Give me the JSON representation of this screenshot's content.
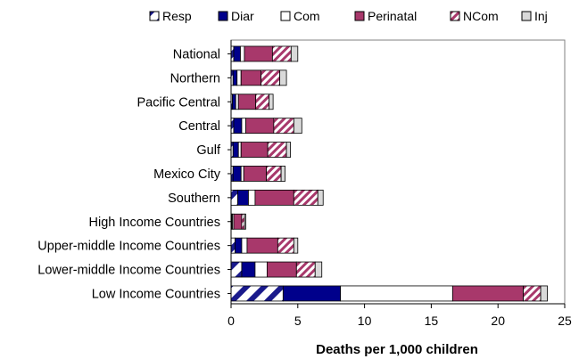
{
  "chart_data": {
    "type": "bar",
    "orientation": "horizontal",
    "stacked": true,
    "title": "",
    "xlabel": "Deaths per 1,000 children",
    "ylabel": "",
    "xlim": [
      0,
      25
    ],
    "xticks": [
      0,
      5,
      10,
      15,
      20,
      25
    ],
    "grid": false,
    "legend_position": "top",
    "categories": [
      "National",
      "Northern",
      "Pacific Central",
      "Central",
      "Gulf",
      "Mexico City",
      "Southern",
      "High Income Countries",
      "Upper-middle Income Countries",
      "Lower-middle Income Countries",
      "Low Income Countries"
    ],
    "series": [
      {
        "name": "Resp",
        "color": "#1a1a8c",
        "pattern": "diagonal-stripes",
        "values": [
          0.2,
          0.15,
          0.1,
          0.2,
          0.15,
          0.15,
          0.5,
          0.05,
          0.3,
          0.8,
          3.9
        ]
      },
      {
        "name": "Diar",
        "color": "#00008b",
        "pattern": "solid",
        "values": [
          0.5,
          0.3,
          0.25,
          0.6,
          0.4,
          0.6,
          0.8,
          0.05,
          0.5,
          1.0,
          4.3
        ]
      },
      {
        "name": "Com",
        "color": "#ffffff",
        "pattern": "solid",
        "values": [
          0.3,
          0.3,
          0.2,
          0.3,
          0.2,
          0.2,
          0.5,
          0.1,
          0.4,
          0.9,
          8.4
        ]
      },
      {
        "name": "Perinatal",
        "color": "#a8386b",
        "pattern": "solid",
        "values": [
          2.1,
          1.5,
          1.3,
          2.1,
          2.0,
          1.7,
          2.9,
          0.6,
          2.3,
          2.2,
          5.3
        ]
      },
      {
        "name": "NCom",
        "color": "#a8386b",
        "pattern": "hatched",
        "values": [
          1.4,
          1.4,
          1.0,
          1.5,
          1.4,
          1.1,
          1.8,
          0.2,
          1.2,
          1.4,
          1.3
        ]
      },
      {
        "name": "Inj",
        "color": "#d9d9d9",
        "pattern": "solid",
        "values": [
          0.5,
          0.5,
          0.3,
          0.6,
          0.3,
          0.3,
          0.4,
          0.1,
          0.3,
          0.5,
          0.5
        ]
      }
    ]
  }
}
